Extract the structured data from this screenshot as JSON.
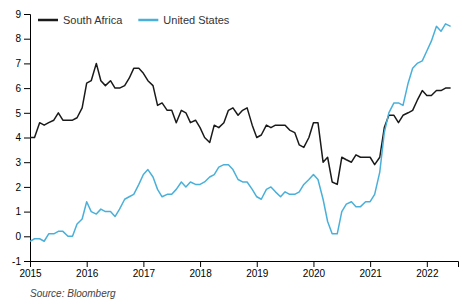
{
  "chart_data": {
    "type": "line",
    "source": "Source: Bloomberg",
    "x": [
      2015.0,
      2015.08,
      2015.17,
      2015.25,
      2015.33,
      2015.42,
      2015.5,
      2015.58,
      2015.67,
      2015.75,
      2015.83,
      2015.92,
      2016.0,
      2016.08,
      2016.17,
      2016.25,
      2016.33,
      2016.42,
      2016.5,
      2016.58,
      2016.67,
      2016.75,
      2016.83,
      2016.92,
      2017.0,
      2017.08,
      2017.17,
      2017.25,
      2017.33,
      2017.42,
      2017.5,
      2017.58,
      2017.67,
      2017.75,
      2017.83,
      2017.92,
      2018.0,
      2018.08,
      2018.17,
      2018.25,
      2018.33,
      2018.42,
      2018.5,
      2018.58,
      2018.67,
      2018.75,
      2018.83,
      2018.92,
      2019.0,
      2019.08,
      2019.17,
      2019.25,
      2019.33,
      2019.42,
      2019.5,
      2019.58,
      2019.67,
      2019.75,
      2019.83,
      2019.92,
      2020.0,
      2020.08,
      2020.17,
      2020.25,
      2020.33,
      2020.42,
      2020.5,
      2020.58,
      2020.67,
      2020.75,
      2020.83,
      2020.92,
      2021.0,
      2021.08,
      2021.17,
      2021.25,
      2021.33,
      2021.42,
      2021.5,
      2021.58,
      2021.67,
      2021.75,
      2021.83,
      2021.92,
      2022.0,
      2022.08,
      2022.17,
      2022.25,
      2022.33,
      2022.42
    ],
    "series": [
      {
        "name": "South Africa",
        "color": "#1a1a1a",
        "values": [
          4.0,
          4.0,
          4.6,
          4.5,
          4.6,
          4.7,
          5.0,
          4.7,
          4.7,
          4.7,
          4.8,
          5.2,
          6.2,
          6.3,
          7.0,
          6.3,
          6.1,
          6.3,
          6.0,
          6.0,
          6.1,
          6.4,
          6.8,
          6.8,
          6.6,
          6.3,
          6.1,
          5.3,
          5.4,
          5.1,
          5.1,
          4.6,
          5.1,
          5.0,
          4.6,
          4.7,
          4.4,
          4.0,
          3.8,
          4.5,
          4.4,
          4.6,
          5.1,
          5.2,
          4.9,
          5.1,
          5.2,
          4.5,
          4.0,
          4.1,
          4.5,
          4.4,
          4.5,
          4.5,
          4.5,
          4.3,
          4.2,
          3.7,
          3.6,
          4.0,
          4.6,
          4.6,
          3.0,
          3.2,
          2.2,
          2.1,
          3.2,
          3.1,
          3.0,
          3.3,
          3.2,
          3.2,
          3.2,
          2.9,
          3.2,
          4.4,
          4.9,
          4.9,
          4.6,
          4.9,
          5.0,
          5.1,
          5.5,
          5.9,
          5.7,
          5.7,
          5.9,
          5.9,
          6.0,
          6.0
        ]
      },
      {
        "name": "United States",
        "color": "#4ab0d9",
        "values": [
          -0.2,
          -0.1,
          -0.1,
          -0.2,
          0.1,
          0.1,
          0.2,
          0.2,
          0.0,
          0.0,
          0.5,
          0.7,
          1.4,
          1.0,
          0.9,
          1.1,
          1.0,
          1.0,
          0.8,
          1.1,
          1.5,
          1.6,
          1.7,
          2.1,
          2.5,
          2.7,
          2.4,
          1.9,
          1.6,
          1.7,
          1.7,
          1.9,
          2.2,
          2.0,
          2.2,
          2.1,
          2.1,
          2.2,
          2.4,
          2.5,
          2.8,
          2.9,
          2.9,
          2.7,
          2.3,
          2.2,
          2.2,
          1.9,
          1.6,
          1.5,
          1.9,
          2.0,
          1.8,
          1.6,
          1.8,
          1.7,
          1.7,
          1.8,
          2.1,
          2.3,
          2.5,
          2.3,
          1.5,
          0.6,
          0.1,
          0.1,
          1.0,
          1.3,
          1.4,
          1.2,
          1.2,
          1.4,
          1.4,
          1.7,
          2.6,
          4.2,
          5.0,
          5.4,
          5.4,
          5.3,
          6.2,
          6.8,
          7.0,
          7.1,
          7.5,
          7.9,
          8.5,
          8.3,
          8.6,
          8.5
        ]
      }
    ],
    "xlim": [
      2015.0,
      2022.55
    ],
    "xticks": [
      2015,
      2016,
      2017,
      2018,
      2019,
      2020,
      2021,
      2022
    ],
    "ylim": [
      -1,
      9
    ],
    "yticks": [
      -1,
      0,
      1,
      2,
      3,
      4,
      5,
      6,
      7,
      8,
      9
    ],
    "grid": false,
    "legend": "upper left"
  }
}
